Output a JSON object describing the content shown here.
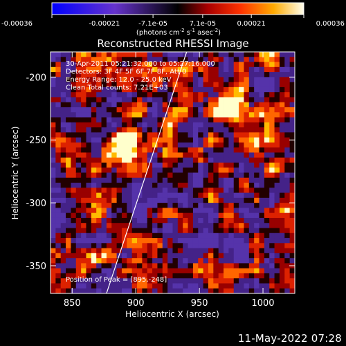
{
  "chart_data": {
    "type": "heatmap",
    "title": "Reconstructed RHESSI Image",
    "xlabel": "Heliocentric X (arcsec)",
    "ylabel": "Heliocentric Y (arcsec)",
    "x_ticks": [
      "850",
      "900",
      "950",
      "1000"
    ],
    "y_ticks": [
      "-200",
      "-250",
      "-300",
      "-350"
    ],
    "xlim": [
      833,
      1025
    ],
    "ylim": [
      -372,
      -180
    ],
    "colorbar": {
      "ticks": [
        "-0.00036",
        "-0.00021",
        "-7.1e-05",
        "7.1e-05",
        "0.00021",
        "0.00036"
      ],
      "range": [
        -0.00036,
        0.00036
      ],
      "unit_label": "(photons cm-2 s-1 asec-2)"
    },
    "annotations": [
      "30-Apr-2011 05:21:32.000 to 05:27:16.000",
      "Detectors: 3F 4F 5F 6F 7F 8F, Att 0",
      "Energy Range: 12.0 - 25.0 keV",
      "Clean    Total counts: 7.21E+03"
    ],
    "peak_label": "Position of Peak = [895,-248]",
    "peak": {
      "x": 895,
      "y": -248
    },
    "limb_line": {
      "x_top": 940,
      "x_bottom": 877
    },
    "bright_sources": [
      {
        "x": 894,
        "y": -248,
        "strength": 1.0
      },
      {
        "x": 975,
        "y": -228,
        "strength": 0.85
      },
      {
        "x": 1010,
        "y": -265,
        "strength": 0.5
      }
    ]
  },
  "footer_timestamp": "11-May-2022 07:28"
}
